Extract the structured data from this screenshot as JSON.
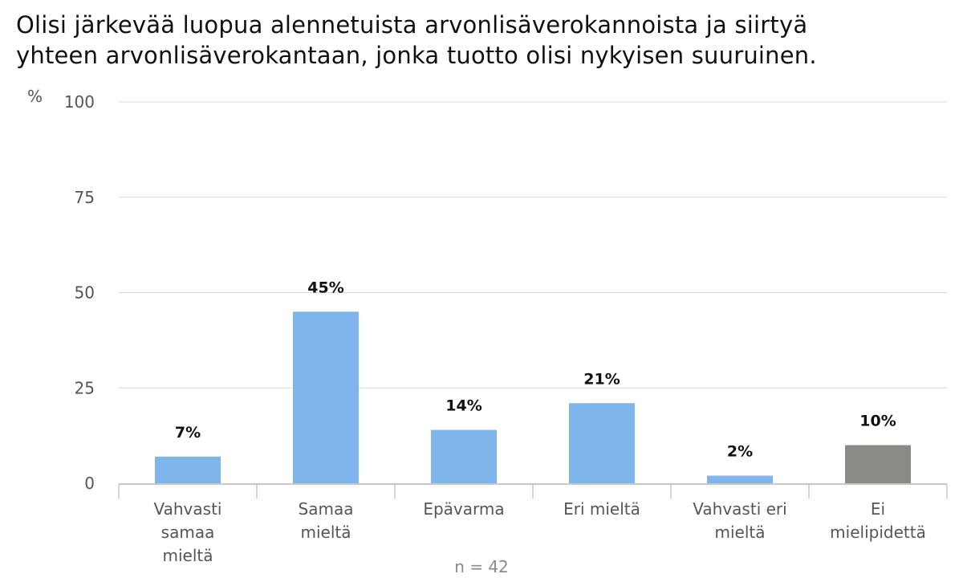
{
  "title_lines": [
    "Olisi järkevää luopua alennetuista arvonlisäverokannoista ja siirtyä",
    "yhteen arvonlisäverokantaan, jonka tuotto olisi nykyisen suuruinen."
  ],
  "chart_data": {
    "type": "bar",
    "ylabel": "%",
    "ylim": [
      0,
      100
    ],
    "yticks": [
      0,
      25,
      50,
      75,
      100
    ],
    "grid": true,
    "categories": [
      [
        "Vahvasti",
        "samaa",
        "mieltä"
      ],
      [
        "Samaa",
        "mieltä"
      ],
      [
        "Epävarma"
      ],
      [
        "Eri mieltä"
      ],
      [
        "Vahvasti eri",
        "mieltä"
      ],
      [
        "Ei",
        "mielipidettä"
      ]
    ],
    "values": [
      7,
      45,
      14,
      21,
      2,
      10
    ],
    "data_labels": [
      "7%",
      "45%",
      "14%",
      "21%",
      "2%",
      "10%"
    ],
    "colors": [
      "#7eb6ec",
      "#7eb6ec",
      "#7eb6ec",
      "#7eb6ec",
      "#7eb6ec",
      "#8b8b86"
    ],
    "note": "n = 42"
  }
}
